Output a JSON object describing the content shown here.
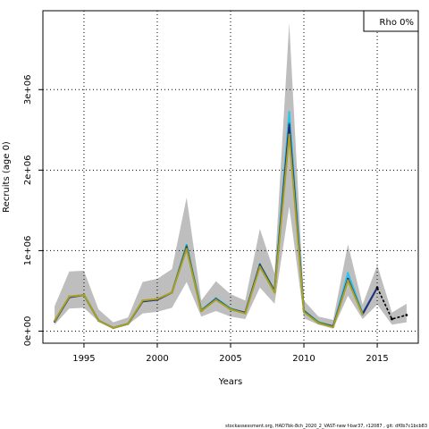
{
  "chart_data": {
    "type": "line",
    "title": "",
    "xlabel": "Years",
    "ylabel": "Recruits (age 0)",
    "xlim": [
      1992.2,
      2017.8
    ],
    "ylim": [
      -150000,
      3980000
    ],
    "x_ticks": [
      1995,
      2000,
      2005,
      2010,
      2015
    ],
    "y_ticks": [
      {
        "value": 0,
        "label": "0e+00"
      },
      {
        "value": 1000000,
        "label": "1e+06"
      },
      {
        "value": 2000000,
        "label": "2e+06"
      },
      {
        "value": 3000000,
        "label": "3e+06"
      }
    ],
    "grid": true,
    "legend": {
      "label": "Rho 0%",
      "placement": "top-right"
    },
    "years": [
      1993,
      1994,
      1995,
      1996,
      1997,
      1998,
      1999,
      2000,
      2001,
      2002,
      2003,
      2004,
      2005,
      2006,
      2007,
      2008,
      2009,
      2010,
      2011,
      2012,
      2013,
      2014,
      2015
    ],
    "band_lower": [
      80000,
      280000,
      290000,
      120000,
      30000,
      80000,
      220000,
      240000,
      290000,
      610000,
      180000,
      250000,
      180000,
      150000,
      540000,
      340000,
      1550000,
      160000,
      80000,
      30000,
      440000,
      150000,
      330000
    ],
    "band_upper": [
      310000,
      740000,
      750000,
      270000,
      110000,
      170000,
      610000,
      650000,
      770000,
      1660000,
      380000,
      620000,
      460000,
      380000,
      1270000,
      720000,
      3830000,
      380000,
      180000,
      140000,
      1080000,
      330000,
      820000
    ],
    "series": [
      {
        "values": [
          120000,
          420000,
          450000,
          130000,
          40000,
          90000,
          370000,
          390000,
          480000,
          1070000,
          260000,
          410000,
          280000,
          230000,
          830000,
          500000,
          2720000,
          260000,
          110000,
          60000,
          720000,
          220000,
          540000
        ],
        "color": "#29c4f0"
      },
      {
        "values": [
          120000,
          420000,
          450000,
          130000,
          40000,
          90000,
          370000,
          390000,
          480000,
          1060000,
          260000,
          400000,
          280000,
          230000,
          830000,
          500000,
          2580000,
          250000,
          110000,
          60000,
          650000,
          220000,
          540000
        ],
        "color": "#1a9a70"
      },
      {
        "values": [
          120000,
          420000,
          450000,
          130000,
          40000,
          90000,
          370000,
          390000,
          480000,
          1040000,
          250000,
          400000,
          270000,
          230000,
          820000,
          490000,
          2560000,
          250000,
          100000,
          60000,
          650000,
          210000,
          540000
        ],
        "color": "#2a2a80"
      },
      {
        "values": [
          130000,
          430000,
          450000,
          130000,
          40000,
          90000,
          380000,
          400000,
          480000,
          1020000,
          250000,
          390000,
          270000,
          220000,
          800000,
          480000,
          2440000,
          240000,
          100000,
          50000,
          630000,
          210000,
          null
        ],
        "color": "#a8a020"
      }
    ],
    "projection": {
      "years": [
        2015,
        2016,
        2017
      ],
      "values": [
        540000,
        150000,
        200000
      ],
      "color": "#000000"
    },
    "projection_band": {
      "years": [
        2015,
        2016,
        2017
      ],
      "lower": [
        330000,
        80000,
        110000
      ],
      "upper": [
        820000,
        230000,
        340000
      ]
    },
    "band_color": "#bebebe"
  },
  "footer": "stockassessment.org, HAD7bk-8ch_2020_2_VAST-new f-bar37, r12087 , git: df0b7c1bcb83"
}
